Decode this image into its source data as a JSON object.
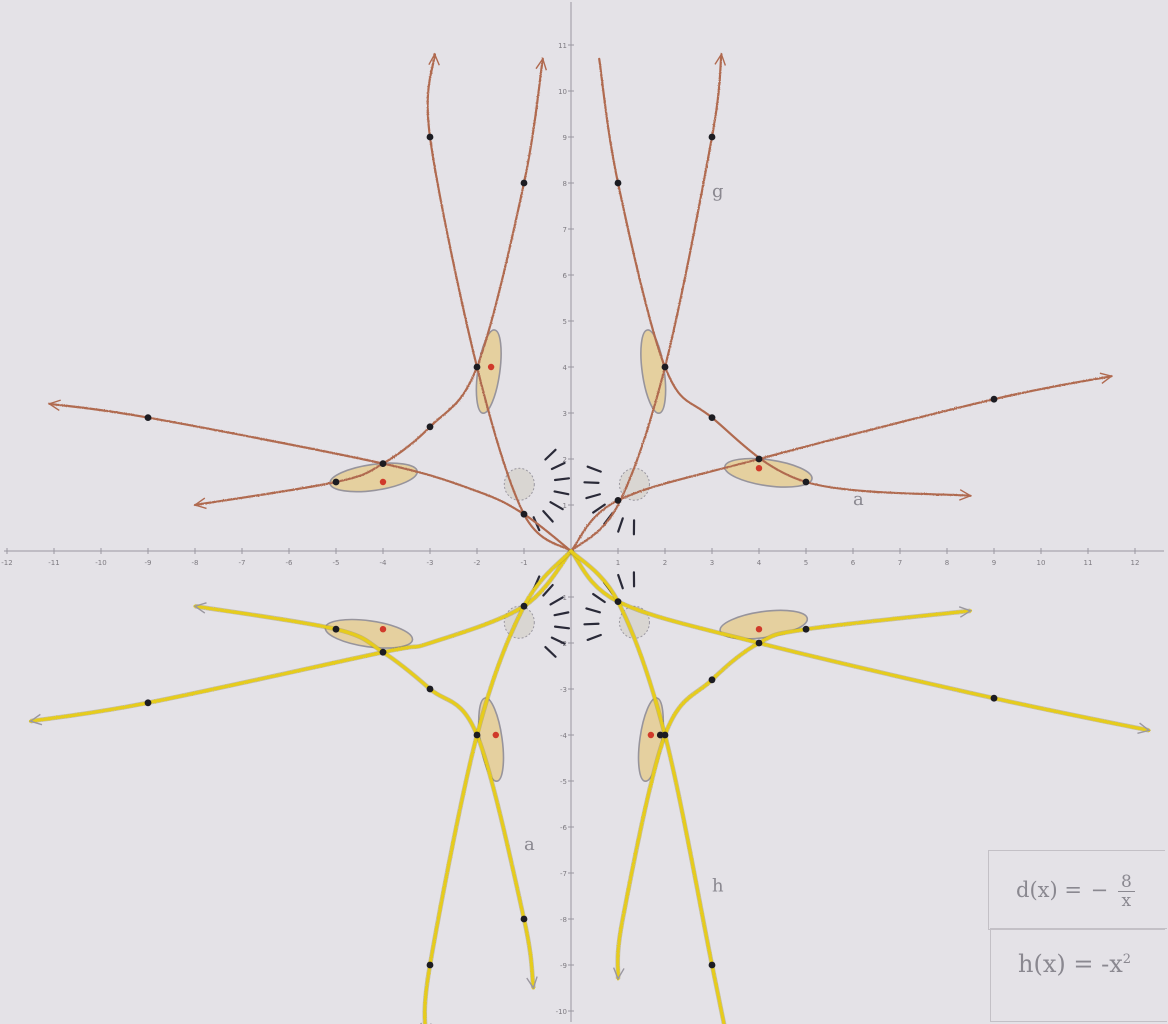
{
  "chart_data": {
    "type": "line",
    "title": "",
    "xlabel": "",
    "ylabel": "",
    "xlim": [
      -12,
      12
    ],
    "ylim": [
      -10,
      11
    ],
    "x_ticks": [
      -12,
      -11,
      -10,
      -9,
      -8,
      -7,
      -6,
      -5,
      -4,
      -3,
      -2,
      -1,
      1,
      2,
      3,
      4,
      5,
      6,
      7,
      8,
      9,
      10,
      11,
      12
    ],
    "y_ticks": [
      -10,
      -9,
      -8,
      -7,
      -6,
      -5,
      -4,
      -3,
      -2,
      -1,
      1,
      2,
      3,
      4,
      5,
      6,
      7,
      8,
      9,
      10,
      11
    ],
    "x_tick_labels": [
      "-12",
      "-11",
      "-10",
      "-9",
      "-8",
      "-7",
      "-6",
      "-5",
      "-4",
      "-3",
      "-2",
      "-1",
      "1",
      "2",
      "3",
      "4",
      "5",
      "6",
      "7",
      "8",
      "9",
      "10",
      "11",
      "12"
    ],
    "y_tick_labels": [
      "-10",
      "-9",
      "-8",
      "-7",
      "-6",
      "-5",
      "-4",
      "-3",
      "-2",
      "-1",
      "1",
      "2",
      "3",
      "4",
      "5",
      "6",
      "7",
      "8",
      "9",
      "10",
      "11"
    ],
    "colors": {
      "upper": "#b06a50",
      "lower": "#e6cc1a",
      "marker": "#1c1c22",
      "center": "#d03a2a",
      "shade": "#e6cf98",
      "shade_edge": "#8f8c94",
      "lash": "#2a2a38"
    },
    "series": [
      {
        "color": "upper",
        "points": [
          [
            -2.9,
            10.8
          ],
          [
            -3,
            9
          ],
          [
            -2,
            4
          ],
          [
            -1,
            0.8
          ],
          [
            0,
            0
          ]
        ],
        "arrow": "start"
      },
      {
        "color": "upper",
        "points": [
          [
            -0.6,
            10.7
          ],
          [
            -1,
            8
          ],
          [
            -2,
            4
          ],
          [
            -3,
            2.7
          ],
          [
            -4,
            1.9
          ],
          [
            -5,
            1.5
          ],
          [
            -8,
            1
          ]
        ],
        "arrow": "both"
      },
      {
        "color": "upper",
        "points": [
          [
            -11.1,
            3.2
          ],
          [
            -9,
            2.9
          ],
          [
            -4,
            1.9
          ],
          [
            -2,
            1.3
          ],
          [
            -1,
            0.8
          ],
          [
            0,
            0
          ]
        ],
        "arrow": "start"
      },
      {
        "color": "upper",
        "points": [
          [
            0.6,
            10.7
          ],
          [
            1,
            8
          ],
          [
            2,
            4
          ],
          [
            3,
            2.9
          ],
          [
            5,
            1.5
          ],
          [
            8.5,
            1.2
          ]
        ],
        "arrow": "end"
      },
      {
        "color": "upper",
        "points": [
          [
            3.2,
            10.8
          ],
          [
            3,
            9
          ],
          [
            2,
            4
          ],
          [
            1,
            1
          ],
          [
            0,
            0
          ]
        ],
        "arrow": "start"
      },
      {
        "color": "upper",
        "points": [
          [
            11.5,
            3.8
          ],
          [
            9,
            3.3
          ],
          [
            4,
            2
          ],
          [
            1,
            1.1
          ],
          [
            0,
            0
          ]
        ],
        "arrow": "start"
      },
      {
        "color": "lower",
        "points": [
          [
            0,
            0
          ],
          [
            -1,
            -1.2
          ],
          [
            -3,
            -2
          ],
          [
            -4,
            -2.2
          ],
          [
            -9,
            -3.3
          ],
          [
            -11.5,
            -3.7
          ]
        ],
        "arrow": "end"
      },
      {
        "color": "lower",
        "points": [
          [
            -8,
            -1.2
          ],
          [
            -5,
            -1.7
          ],
          [
            -4,
            -2.2
          ],
          [
            -3,
            -3
          ],
          [
            -2,
            -4
          ],
          [
            -1,
            -8
          ],
          [
            -0.8,
            -9.5
          ]
        ],
        "arrow": "both"
      },
      {
        "color": "lower",
        "points": [
          [
            0,
            0
          ],
          [
            -1,
            -1.2
          ],
          [
            -2,
            -4
          ],
          [
            -3,
            -9
          ],
          [
            -3.1,
            -10.5
          ]
        ],
        "arrow": "end"
      },
      {
        "color": "lower",
        "points": [
          [
            0,
            0
          ],
          [
            1,
            -1.1
          ],
          [
            4,
            -2
          ],
          [
            9,
            -3.2
          ],
          [
            12.3,
            -3.9
          ]
        ],
        "arrow": "end"
      },
      {
        "color": "lower",
        "points": [
          [
            8.5,
            -1.3
          ],
          [
            5,
            -1.7
          ],
          [
            4,
            -2
          ],
          [
            3,
            -2.8
          ],
          [
            2,
            -4
          ],
          [
            1.1,
            -8
          ],
          [
            1,
            -9.3
          ]
        ],
        "arrow": "both"
      },
      {
        "color": "lower",
        "points": [
          [
            0,
            0
          ],
          [
            1,
            -1.1
          ],
          [
            2,
            -4
          ],
          [
            3,
            -9
          ],
          [
            3.3,
            -10.5
          ]
        ],
        "arrow": "none"
      }
    ],
    "dots": [
      [
        -3,
        9
      ],
      [
        -1,
        8
      ],
      [
        -2,
        4
      ],
      [
        -3,
        2.7
      ],
      [
        -4,
        1.9
      ],
      [
        -5,
        1.5
      ],
      [
        -9,
        2.9
      ],
      [
        -1,
        0.8
      ],
      [
        1,
        8
      ],
      [
        3,
        9
      ],
      [
        2,
        4
      ],
      [
        3,
        2.9
      ],
      [
        4,
        2
      ],
      [
        5,
        1.5
      ],
      [
        9,
        3.3
      ],
      [
        1,
        1.1
      ],
      [
        -1,
        -1.2
      ],
      [
        -5,
        -1.7
      ],
      [
        -4,
        -2.2
      ],
      [
        -3,
        -3
      ],
      [
        -9,
        -3.3
      ],
      [
        -2,
        -4
      ],
      [
        -1,
        -8
      ],
      [
        -3,
        -9
      ],
      [
        1,
        -1.1
      ],
      [
        4,
        -2
      ],
      [
        5,
        -1.7
      ],
      [
        3,
        -2.8
      ],
      [
        9,
        -3.2
      ],
      [
        2,
        -4
      ],
      [
        1.9,
        -4
      ],
      [
        3,
        -9
      ]
    ],
    "eyes": [
      {
        "quadrant": "upper-left",
        "center": [
          -1.75,
          3.9
        ],
        "iris": [
          -1.7,
          4
        ],
        "other_center": [
          -4.2,
          1.6
        ],
        "other_iris": [
          -4,
          1.5
        ]
      },
      {
        "quadrant": "upper-right",
        "center": [
          1.75,
          3.9
        ],
        "iris": [
          2,
          4
        ],
        "other_center": [
          4.2,
          1.7
        ],
        "other_iris": [
          4,
          1.8
        ]
      },
      {
        "quadrant": "lower-left",
        "center": [
          -1.7,
          -4.1
        ],
        "iris": [
          -1.6,
          -4
        ],
        "other_center": [
          -4.3,
          -1.8
        ],
        "other_iris": [
          -4,
          -1.7
        ]
      },
      {
        "quadrant": "lower-right",
        "center": [
          1.7,
          -4.1
        ],
        "iris": [
          1.7,
          -4
        ],
        "other_center": [
          4.1,
          -1.6
        ],
        "other_iris": [
          4,
          -1.7
        ]
      }
    ],
    "annotations": [
      {
        "text": "g",
        "x": 3,
        "y": 7.7
      },
      {
        "text": "a",
        "x": 6,
        "y": 1
      },
      {
        "text": "a",
        "x": -1,
        "y": -6.5
      },
      {
        "text": "h",
        "x": 3,
        "y": -7.4
      }
    ],
    "formulas": {
      "d_lhs": "d(x) =",
      "d_sign": "−",
      "d_num": "8",
      "d_den": "x",
      "h_lhs": "h(x) = -x",
      "h_exp": "2"
    }
  }
}
